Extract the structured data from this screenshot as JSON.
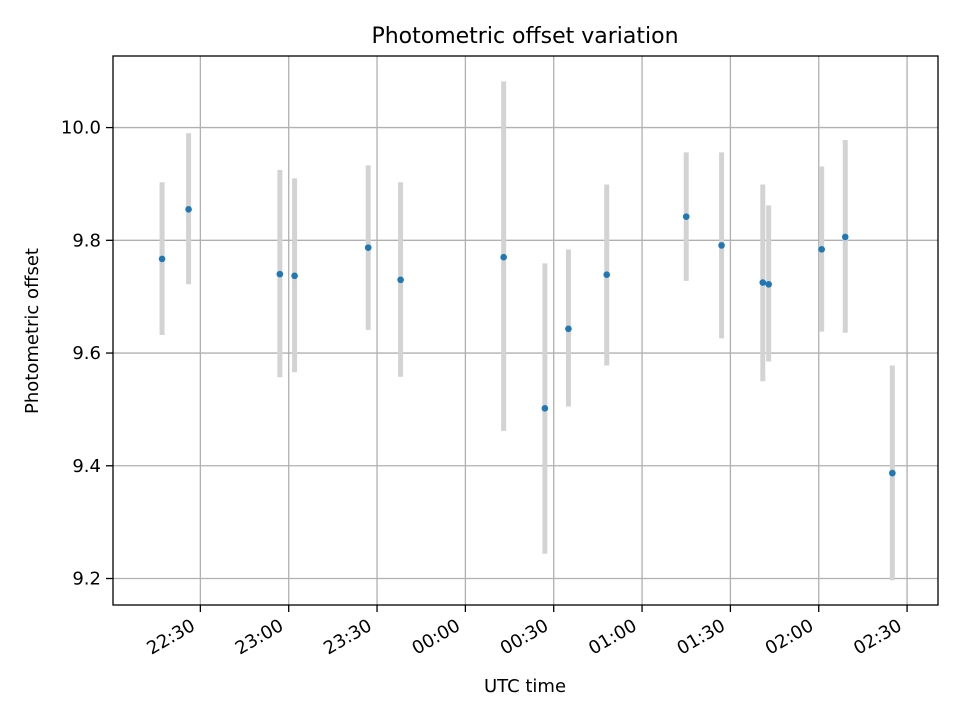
{
  "chart_data": {
    "type": "scatter",
    "title": "Photometric offset variation",
    "xlabel": "UTC time",
    "ylabel": "Photometric offset",
    "x_tick_labels": [
      "22:30",
      "23:00",
      "23:30",
      "00:00",
      "00:30",
      "01:00",
      "01:30",
      "02:00",
      "02:30"
    ],
    "y_tick_labels": [
      "9.2",
      "9.4",
      "9.6",
      "9.8",
      "10.0"
    ],
    "y_ticks": [
      9.2,
      9.4,
      9.6,
      9.8,
      10.0
    ],
    "xlim": [
      "22:00:20",
      "02:40:30"
    ],
    "ylim": [
      9.153,
      10.127
    ],
    "grid": true,
    "point_color": "#1f77b4",
    "errorbar_color": "#d3d3d3",
    "points": [
      {
        "x": "22:17",
        "y": 9.767,
        "y_low": 9.632,
        "y_high": 9.903
      },
      {
        "x": "22:26",
        "y": 9.855,
        "y_low": 9.722,
        "y_high": 9.99
      },
      {
        "x": "22:57",
        "y": 9.74,
        "y_low": 9.557,
        "y_high": 9.925
      },
      {
        "x": "23:02",
        "y": 9.737,
        "y_low": 9.566,
        "y_high": 9.91
      },
      {
        "x": "23:27",
        "y": 9.787,
        "y_low": 9.641,
        "y_high": 9.933
      },
      {
        "x": "23:38",
        "y": 9.73,
        "y_low": 9.558,
        "y_high": 9.903
      },
      {
        "x": "00:13",
        "y": 9.77,
        "y_low": 9.462,
        "y_high": 10.082
      },
      {
        "x": "00:27",
        "y": 9.502,
        "y_low": 9.244,
        "y_high": 9.759
      },
      {
        "x": "00:35",
        "y": 9.643,
        "y_low": 9.505,
        "y_high": 9.784
      },
      {
        "x": "00:48",
        "y": 9.739,
        "y_low": 9.578,
        "y_high": 9.899
      },
      {
        "x": "01:15",
        "y": 9.842,
        "y_low": 9.728,
        "y_high": 9.956
      },
      {
        "x": "01:27",
        "y": 9.791,
        "y_low": 9.626,
        "y_high": 9.956
      },
      {
        "x": "01:41",
        "y": 9.725,
        "y_low": 9.55,
        "y_high": 9.899
      },
      {
        "x": "01:43",
        "y": 9.722,
        "y_low": 9.585,
        "y_high": 9.862
      },
      {
        "x": "02:01",
        "y": 9.784,
        "y_low": 9.638,
        "y_high": 9.931
      },
      {
        "x": "02:09",
        "y": 9.806,
        "y_low": 9.636,
        "y_high": 9.978
      },
      {
        "x": "02:25",
        "y": 9.387,
        "y_low": 9.197,
        "y_high": 9.578
      }
    ]
  }
}
